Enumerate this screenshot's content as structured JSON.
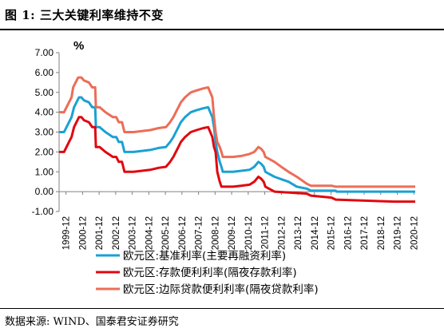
{
  "figure": {
    "title": "图 1:  三大关键利率维持不变",
    "source": "数据来源:  WIND、国泰君安证券研究"
  },
  "chart_data": {
    "type": "line",
    "title": "三大关键利率维持不变",
    "ylabel": "%",
    "ylim": [
      -1.0,
      7.0
    ],
    "yticks": [
      "-1.00",
      "0.00",
      "1.00",
      "2.00",
      "3.00",
      "4.00",
      "5.00",
      "6.00",
      "7.00"
    ],
    "xlim": [
      1999.5,
      2021.0
    ],
    "xticks": [
      "1999-12",
      "2000-12",
      "2001-12",
      "2002-12",
      "2003-12",
      "2004-12",
      "2005-12",
      "2006-12",
      "2007-12",
      "2008-12",
      "2009-12",
      "2010-12",
      "2011-12",
      "2012-12",
      "2013-12",
      "2014-12",
      "2015-12",
      "2016-12",
      "2017-12",
      "2018-12",
      "2019-12",
      "2020-12"
    ],
    "legend_position": "bottom",
    "grid": false,
    "series": [
      {
        "name": "欧元区:基准利率(主要再融资利率)",
        "color": "#1ba1d4",
        "points": [
          [
            1999.5,
            3.0
          ],
          [
            1999.8,
            3.0
          ],
          [
            1999.95,
            3.25
          ],
          [
            2000.1,
            3.5
          ],
          [
            2000.25,
            3.75
          ],
          [
            2000.4,
            4.25
          ],
          [
            2000.55,
            4.5
          ],
          [
            2000.7,
            4.75
          ],
          [
            2000.85,
            4.75
          ],
          [
            2001.0,
            4.6
          ],
          [
            2001.3,
            4.5
          ],
          [
            2001.5,
            4.25
          ],
          [
            2001.68,
            4.25
          ],
          [
            2001.72,
            3.25
          ],
          [
            2001.95,
            3.25
          ],
          [
            2002.3,
            3.0
          ],
          [
            2002.75,
            2.75
          ],
          [
            2002.95,
            2.75
          ],
          [
            2003.1,
            2.5
          ],
          [
            2003.3,
            2.5
          ],
          [
            2003.45,
            2.0
          ],
          [
            2004.0,
            2.0
          ],
          [
            2004.5,
            2.05
          ],
          [
            2005.0,
            2.1
          ],
          [
            2005.5,
            2.2
          ],
          [
            2005.95,
            2.25
          ],
          [
            2006.2,
            2.5
          ],
          [
            2006.4,
            2.75
          ],
          [
            2006.55,
            3.0
          ],
          [
            2006.7,
            3.25
          ],
          [
            2006.85,
            3.5
          ],
          [
            2007.1,
            3.75
          ],
          [
            2007.45,
            4.0
          ],
          [
            2007.8,
            4.1
          ],
          [
            2008.2,
            4.2
          ],
          [
            2008.5,
            4.25
          ],
          [
            2008.75,
            3.75
          ],
          [
            2008.85,
            3.25
          ],
          [
            2008.95,
            2.5
          ],
          [
            2009.05,
            2.0
          ],
          [
            2009.2,
            1.5
          ],
          [
            2009.3,
            1.25
          ],
          [
            2009.38,
            1.0
          ],
          [
            2010.0,
            1.0
          ],
          [
            2010.5,
            1.05
          ],
          [
            2011.0,
            1.1
          ],
          [
            2011.28,
            1.25
          ],
          [
            2011.53,
            1.5
          ],
          [
            2011.7,
            1.4
          ],
          [
            2011.85,
            1.25
          ],
          [
            2011.95,
            1.0
          ],
          [
            2012.5,
            0.75
          ],
          [
            2013.0,
            0.6
          ],
          [
            2013.35,
            0.5
          ],
          [
            2013.85,
            0.25
          ],
          [
            2014.45,
            0.15
          ],
          [
            2014.7,
            0.05
          ],
          [
            2016.2,
            0.05
          ],
          [
            2016.25,
            0.0
          ],
          [
            2021.0,
            0.0
          ]
        ]
      },
      {
        "name": "欧元区:存款便利利率(隔夜存款利率)",
        "color": "#e0080f",
        "points": [
          [
            1999.5,
            2.0
          ],
          [
            1999.8,
            2.0
          ],
          [
            1999.95,
            2.25
          ],
          [
            2000.1,
            2.5
          ],
          [
            2000.25,
            2.75
          ],
          [
            2000.4,
            3.25
          ],
          [
            2000.55,
            3.5
          ],
          [
            2000.7,
            3.75
          ],
          [
            2000.85,
            3.75
          ],
          [
            2001.0,
            3.6
          ],
          [
            2001.3,
            3.5
          ],
          [
            2001.5,
            3.25
          ],
          [
            2001.68,
            3.25
          ],
          [
            2001.72,
            2.25
          ],
          [
            2001.95,
            2.25
          ],
          [
            2002.3,
            2.0
          ],
          [
            2002.75,
            1.75
          ],
          [
            2002.95,
            1.75
          ],
          [
            2003.1,
            1.5
          ],
          [
            2003.3,
            1.5
          ],
          [
            2003.45,
            1.0
          ],
          [
            2004.0,
            1.0
          ],
          [
            2004.5,
            1.05
          ],
          [
            2005.0,
            1.1
          ],
          [
            2005.5,
            1.2
          ],
          [
            2005.95,
            1.25
          ],
          [
            2006.2,
            1.5
          ],
          [
            2006.4,
            1.75
          ],
          [
            2006.55,
            2.0
          ],
          [
            2006.7,
            2.25
          ],
          [
            2006.85,
            2.5
          ],
          [
            2007.1,
            2.75
          ],
          [
            2007.45,
            3.0
          ],
          [
            2007.8,
            3.1
          ],
          [
            2008.2,
            3.2
          ],
          [
            2008.5,
            3.25
          ],
          [
            2008.75,
            2.75
          ],
          [
            2008.85,
            2.25
          ],
          [
            2008.95,
            2.0
          ],
          [
            2009.05,
            1.0
          ],
          [
            2009.2,
            0.5
          ],
          [
            2009.3,
            0.25
          ],
          [
            2010.0,
            0.25
          ],
          [
            2010.5,
            0.3
          ],
          [
            2011.0,
            0.35
          ],
          [
            2011.28,
            0.5
          ],
          [
            2011.53,
            0.75
          ],
          [
            2011.7,
            0.65
          ],
          [
            2011.85,
            0.5
          ],
          [
            2011.95,
            0.25
          ],
          [
            2012.5,
            0.0
          ],
          [
            2014.45,
            -0.1
          ],
          [
            2014.7,
            -0.2
          ],
          [
            2015.95,
            -0.3
          ],
          [
            2016.2,
            -0.4
          ],
          [
            2019.7,
            -0.5
          ],
          [
            2021.0,
            -0.5
          ]
        ]
      },
      {
        "name": "欧元区:边际贷款便利利率(隔夜贷款利率)",
        "color": "#ec6d57",
        "points": [
          [
            1999.5,
            4.0
          ],
          [
            1999.8,
            4.0
          ],
          [
            1999.95,
            4.25
          ],
          [
            2000.1,
            4.5
          ],
          [
            2000.25,
            4.75
          ],
          [
            2000.35,
            5.25
          ],
          [
            2000.5,
            5.5
          ],
          [
            2000.65,
            5.75
          ],
          [
            2000.85,
            5.75
          ],
          [
            2001.0,
            5.6
          ],
          [
            2001.3,
            5.5
          ],
          [
            2001.5,
            5.25
          ],
          [
            2001.68,
            5.25
          ],
          [
            2001.72,
            4.25
          ],
          [
            2001.95,
            4.25
          ],
          [
            2002.3,
            4.0
          ],
          [
            2002.75,
            3.75
          ],
          [
            2002.95,
            3.75
          ],
          [
            2003.1,
            3.5
          ],
          [
            2003.3,
            3.5
          ],
          [
            2003.45,
            3.0
          ],
          [
            2004.0,
            3.0
          ],
          [
            2004.5,
            3.05
          ],
          [
            2005.0,
            3.1
          ],
          [
            2005.5,
            3.2
          ],
          [
            2005.95,
            3.25
          ],
          [
            2006.2,
            3.5
          ],
          [
            2006.4,
            3.75
          ],
          [
            2006.55,
            4.0
          ],
          [
            2006.7,
            4.25
          ],
          [
            2006.85,
            4.5
          ],
          [
            2007.1,
            4.75
          ],
          [
            2007.45,
            5.0
          ],
          [
            2007.8,
            5.1
          ],
          [
            2008.2,
            5.2
          ],
          [
            2008.5,
            5.25
          ],
          [
            2008.75,
            4.75
          ],
          [
            2008.85,
            3.75
          ],
          [
            2008.95,
            3.0
          ],
          [
            2009.05,
            2.5
          ],
          [
            2009.2,
            2.25
          ],
          [
            2009.3,
            2.0
          ],
          [
            2009.38,
            1.75
          ],
          [
            2010.0,
            1.75
          ],
          [
            2010.5,
            1.8
          ],
          [
            2011.0,
            1.9
          ],
          [
            2011.28,
            2.0
          ],
          [
            2011.53,
            2.25
          ],
          [
            2011.7,
            2.15
          ],
          [
            2011.85,
            2.0
          ],
          [
            2011.95,
            1.75
          ],
          [
            2012.5,
            1.5
          ],
          [
            2013.0,
            1.2
          ],
          [
            2013.35,
            1.0
          ],
          [
            2013.85,
            0.75
          ],
          [
            2014.45,
            0.4
          ],
          [
            2014.7,
            0.3
          ],
          [
            2015.95,
            0.3
          ],
          [
            2016.2,
            0.25
          ],
          [
            2021.0,
            0.25
          ]
        ]
      }
    ]
  }
}
